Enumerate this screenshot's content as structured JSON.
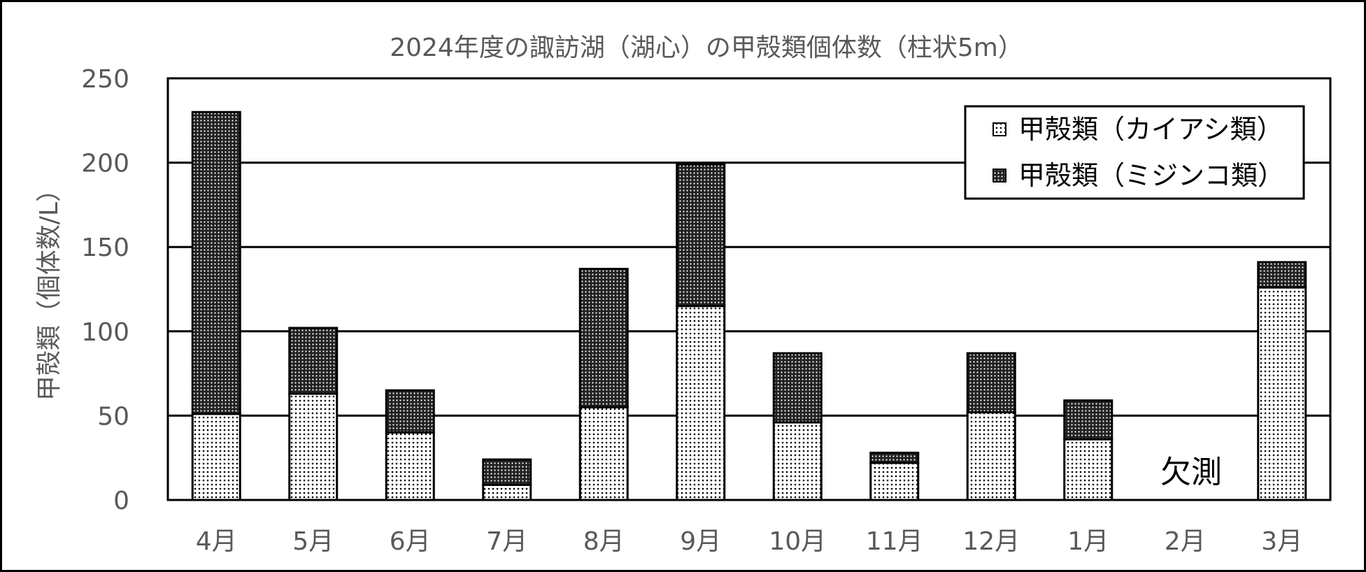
{
  "chart_data": {
    "type": "bar",
    "stacked": true,
    "title": "2024年度の諏訪湖（湖心）の甲殻類個体数（柱状5m）",
    "ylabel": "甲殻類（個体数/L）",
    "xlabel": "",
    "ylim": [
      0,
      250
    ],
    "yticks": [
      0,
      50,
      100,
      150,
      200,
      250
    ],
    "grid": true,
    "legend_position": "top-right",
    "categories": [
      "4月",
      "5月",
      "6月",
      "7月",
      "8月",
      "9月",
      "10月",
      "11月",
      "12月",
      "1月",
      "2月",
      "3月"
    ],
    "series": [
      {
        "name": "甲殻類（カイアシ類）",
        "values": [
          51,
          63,
          40,
          9,
          55,
          115,
          46,
          22,
          52,
          36,
          null,
          126
        ],
        "color": "#e6e6e6",
        "pattern": "light-dots"
      },
      {
        "name": "甲殻類（ミジンコ類）",
        "values": [
          179,
          39,
          25,
          15,
          82,
          84,
          41,
          6,
          35,
          23,
          null,
          15
        ],
        "color": "#333333",
        "pattern": "dark-dots"
      }
    ],
    "annotations": [
      {
        "category": "2月",
        "text": "欠測"
      }
    ]
  }
}
